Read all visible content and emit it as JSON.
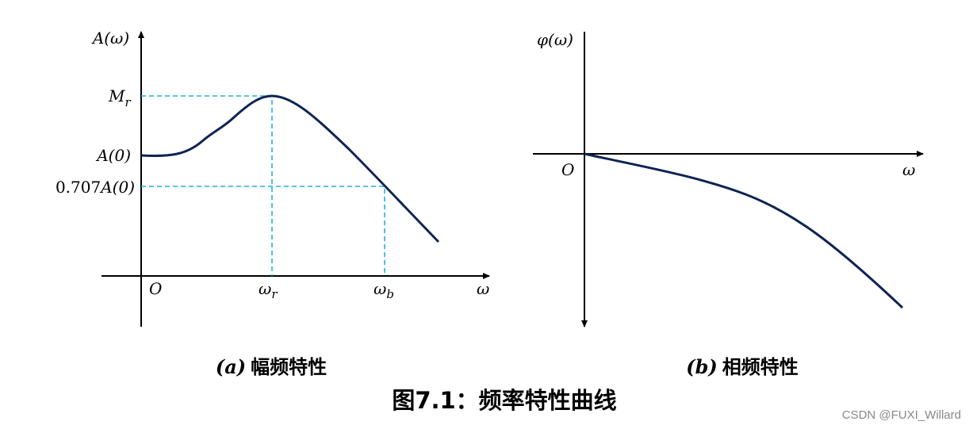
{
  "left": {
    "y_axis_label": "A(ω)",
    "peak_label": {
      "main": "M",
      "sub": "r"
    },
    "a0_label": "A(0)",
    "cutoff_label": {
      "coef": "0.707",
      "main": "A(0)"
    },
    "origin": "O",
    "wr_label": {
      "main": "ω",
      "sub": "r"
    },
    "wb_label": {
      "main": "ω",
      "sub": "b"
    },
    "x_axis_label": "ω",
    "caption": {
      "tag": "(a)",
      "text": "幅频特性"
    }
  },
  "right": {
    "y_axis_label": "φ(ω)",
    "origin": "O",
    "x_axis_label": "ω",
    "caption": {
      "tag": "(b)",
      "text": "相频特性"
    }
  },
  "title": "图7.1：频率特性曲线",
  "watermark": "CSDN @FUXI_Willard"
}
